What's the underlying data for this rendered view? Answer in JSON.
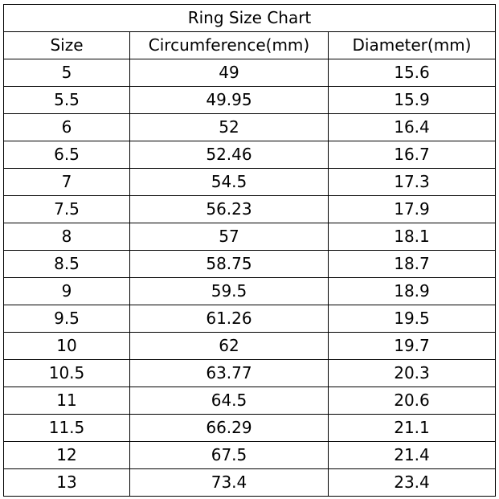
{
  "title": "Ring Size Chart",
  "columns": [
    "Size",
    "Circumference(mm)",
    "Diameter(mm)"
  ],
  "rows": [
    [
      "5",
      "49",
      "15.6"
    ],
    [
      "5.5",
      "49.95",
      "15.9"
    ],
    [
      "6",
      "52",
      "16.4"
    ],
    [
      "6.5",
      "52.46",
      "16.7"
    ],
    [
      "7",
      "54.5",
      "17.3"
    ],
    [
      "7.5",
      "56.23",
      "17.9"
    ],
    [
      "8",
      "57",
      "18.1"
    ],
    [
      "8.5",
      "58.75",
      "18.7"
    ],
    [
      "9",
      "59.5",
      "18.9"
    ],
    [
      "9.5",
      "61.26",
      "19.5"
    ],
    [
      "10",
      "62",
      "19.7"
    ],
    [
      "10.5",
      "63.77",
      "20.3"
    ],
    [
      "11",
      "64.5",
      "20.6"
    ],
    [
      "11.5",
      "66.29",
      "21.1"
    ],
    [
      "12",
      "67.5",
      "21.4"
    ],
    [
      "13",
      "73.4",
      "23.4"
    ]
  ]
}
